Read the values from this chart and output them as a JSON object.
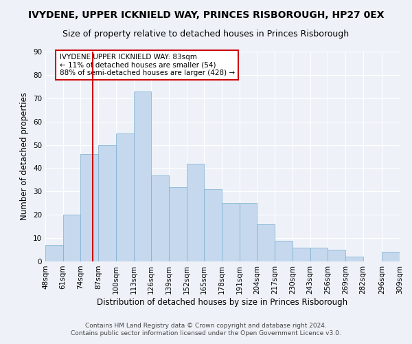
{
  "title": "IVYDENE, UPPER ICKNIELD WAY, PRINCES RISBOROUGH, HP27 0EX",
  "subtitle": "Size of property relative to detached houses in Princes Risborough",
  "xlabel": "Distribution of detached houses by size in Princes Risborough",
  "ylabel": "Number of detached properties",
  "footnote1": "Contains HM Land Registry data © Crown copyright and database right 2024.",
  "footnote2": "Contains public sector information licensed under the Open Government Licence v3.0.",
  "bin_labels": [
    "48sqm",
    "61sqm",
    "74sqm",
    "87sqm",
    "100sqm",
    "113sqm",
    "126sqm",
    "139sqm",
    "152sqm",
    "165sqm",
    "178sqm",
    "191sqm",
    "204sqm",
    "217sqm",
    "230sqm",
    "243sqm",
    "256sqm",
    "269sqm",
    "282sqm",
    "296sqm",
    "309sqm"
  ],
  "bar_heights": [
    7,
    20,
    46,
    50,
    55,
    73,
    37,
    32,
    42,
    31,
    25,
    25,
    16,
    9,
    6,
    6,
    5,
    2,
    0,
    4
  ],
  "bin_edges": [
    48,
    61,
    74,
    87,
    100,
    113,
    126,
    139,
    152,
    165,
    178,
    191,
    204,
    217,
    230,
    243,
    256,
    269,
    282,
    296,
    309
  ],
  "bar_color": "#c5d8ed",
  "bar_edge_color": "#7aaed0",
  "vline_x": 83,
  "vline_color": "#cc0000",
  "ylim": [
    0,
    90
  ],
  "yticks": [
    0,
    10,
    20,
    30,
    40,
    50,
    60,
    70,
    80,
    90
  ],
  "annotation_text": "IVYDENE UPPER ICKNIELD WAY: 83sqm\n← 11% of detached houses are smaller (54)\n88% of semi-detached houses are larger (428) →",
  "annotation_box_color": "#ffffff",
  "annotation_box_edge": "#cc0000",
  "background_color": "#eef2f8",
  "title_fontsize": 10,
  "subtitle_fontsize": 9,
  "axis_label_fontsize": 8.5,
  "tick_fontsize": 7.5,
  "footnote_fontsize": 6.5
}
